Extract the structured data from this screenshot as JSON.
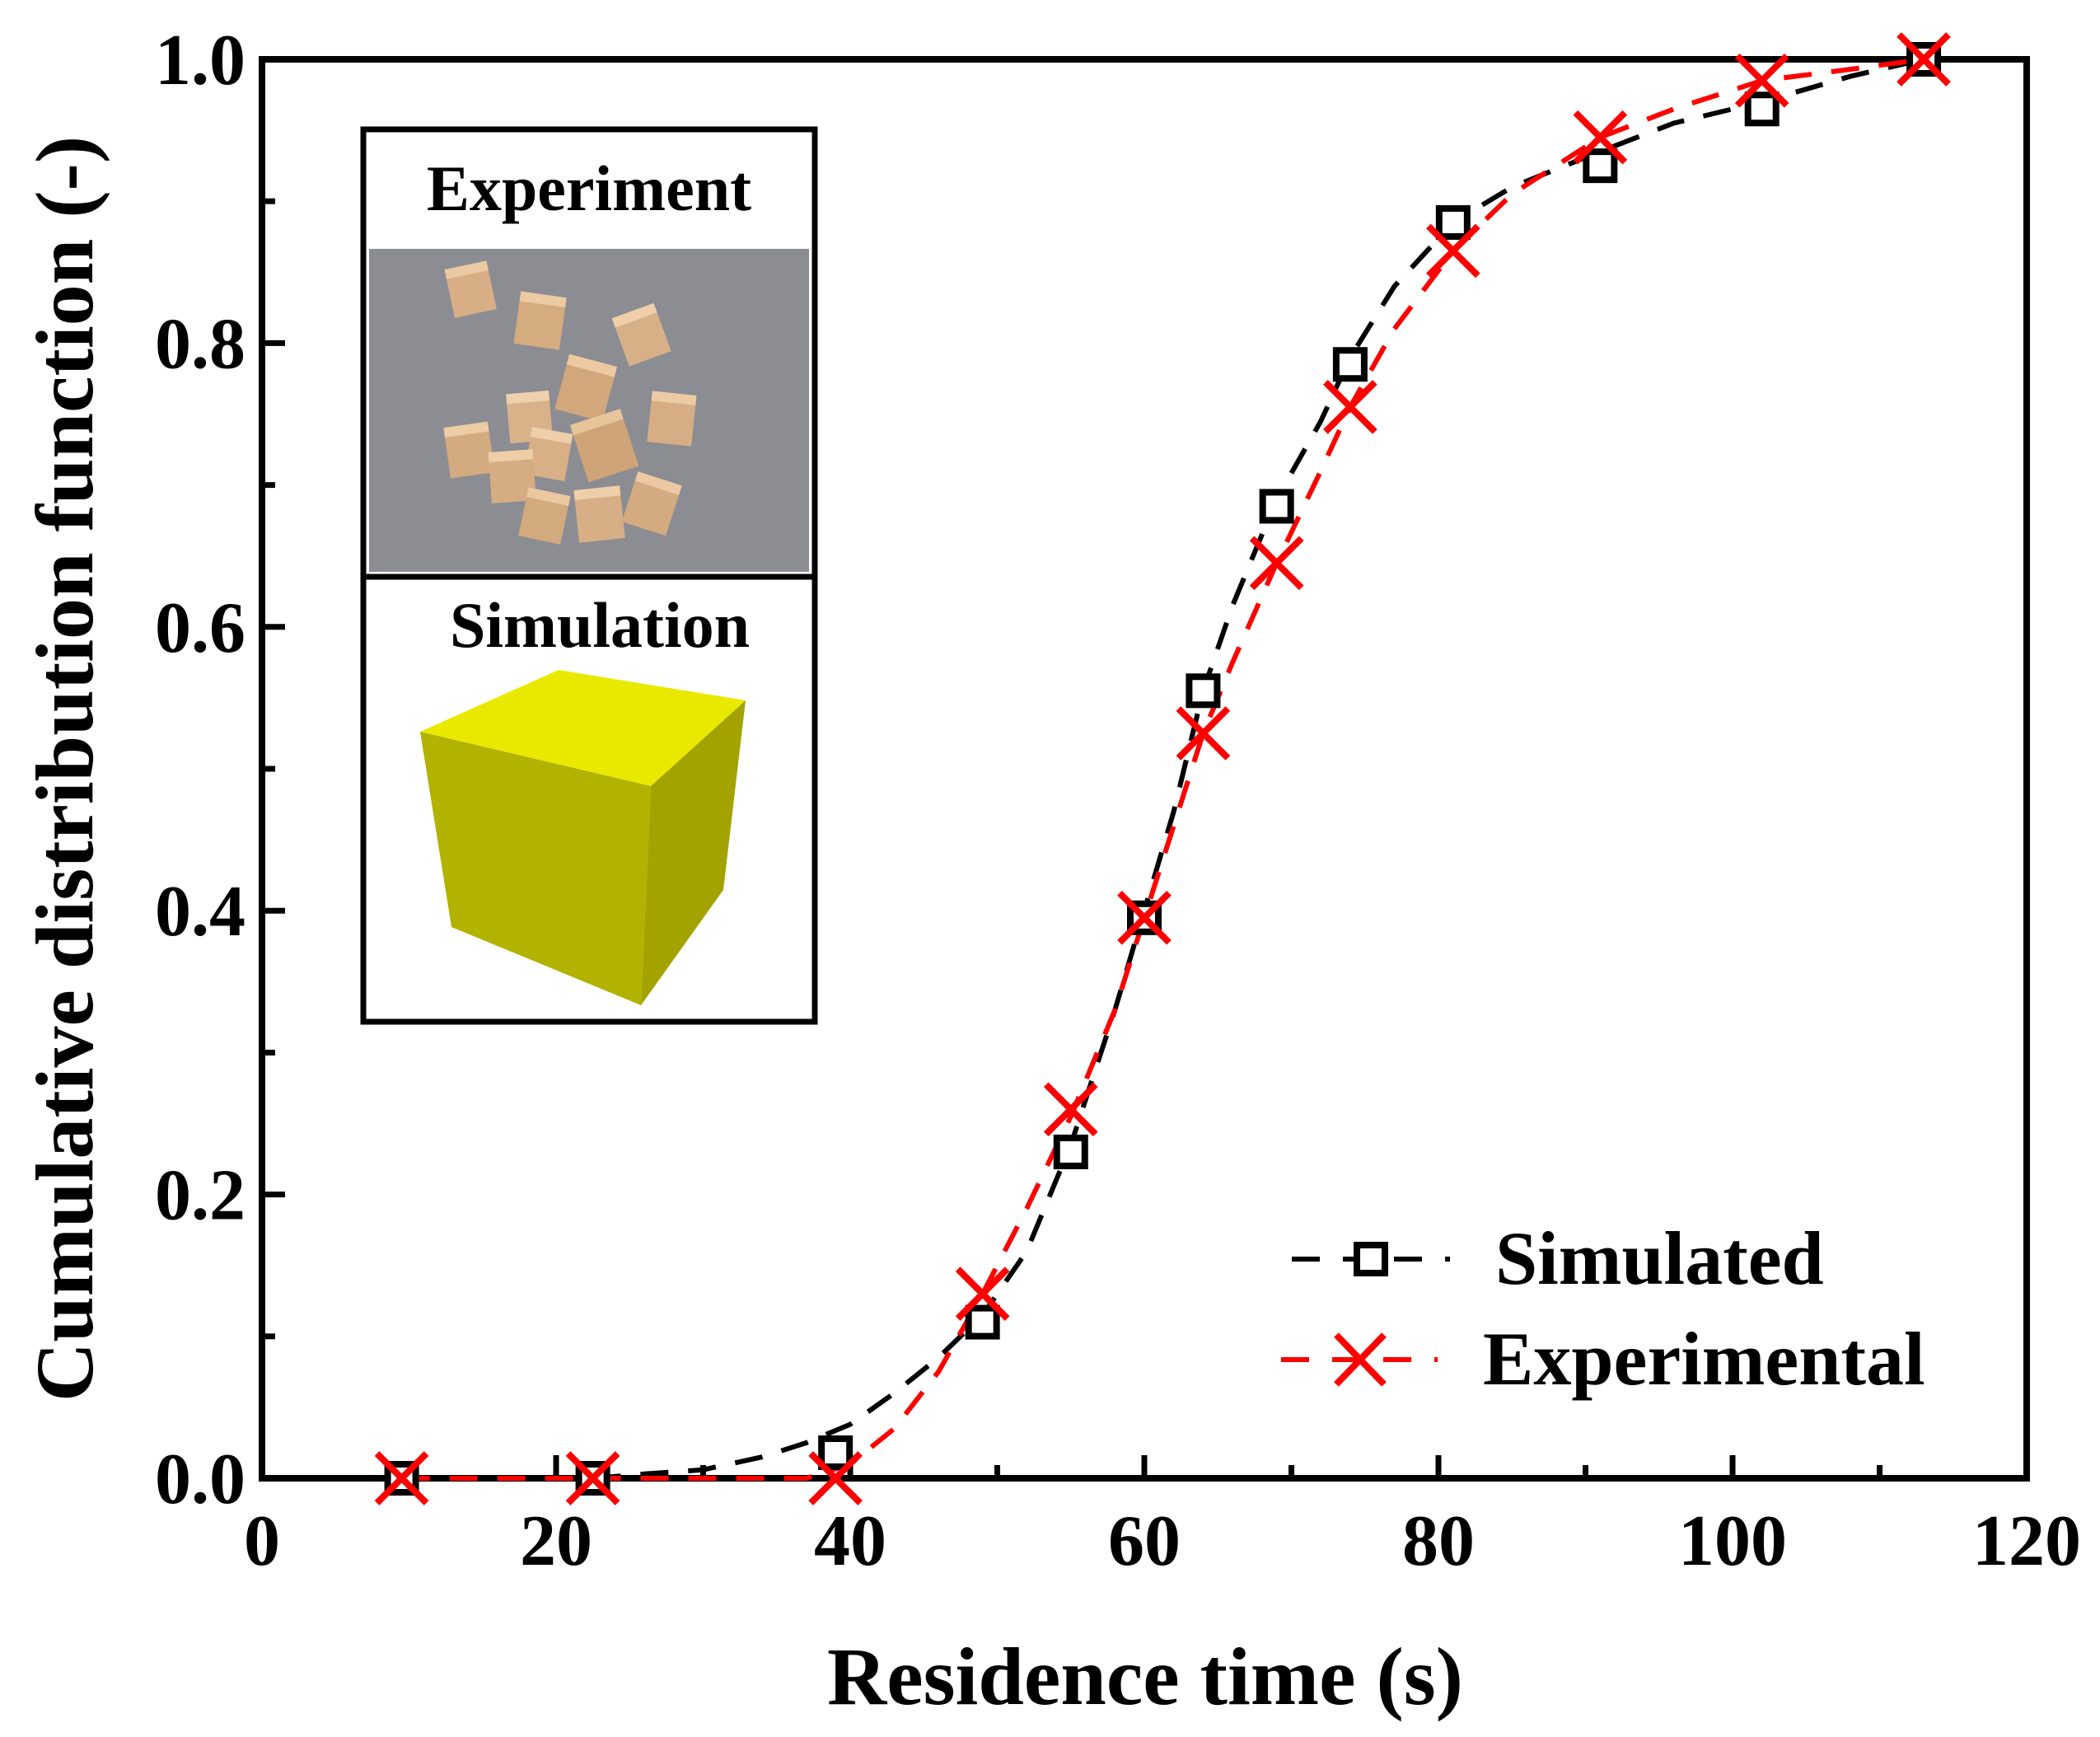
{
  "chart_data": {
    "type": "line",
    "xlabel": "Residence time (s)",
    "ylabel": "Cumulative distribution function (-)",
    "xlim": [
      0,
      120
    ],
    "ylim": [
      0,
      1.0
    ],
    "xticks": [
      0,
      20,
      40,
      60,
      80,
      100,
      120
    ],
    "yticks": [
      0.0,
      0.2,
      0.4,
      0.6,
      0.8,
      1.0
    ],
    "xtick_labels": [
      "0",
      "20",
      "40",
      "60",
      "80",
      "100",
      "120"
    ],
    "ytick_labels": [
      "0.0",
      "0.2",
      "0.4",
      "0.6",
      "0.8",
      "1.0"
    ],
    "legend_position": "bottom-right",
    "series": [
      {
        "name": "Simulated",
        "color": "#000000",
        "marker": "square",
        "line": "dashed",
        "x": [
          9.5,
          22.5,
          39,
          49,
          55,
          60,
          64,
          69,
          74,
          81,
          91,
          102,
          113
        ],
        "y": [
          0.0,
          0.0,
          0.018,
          0.11,
          0.23,
          0.395,
          0.555,
          0.685,
          0.785,
          0.885,
          0.925,
          0.965,
          1.0
        ],
        "fit_x": [
          9.5,
          14,
          18,
          22.5,
          26,
          30,
          34,
          37,
          40,
          43,
          46,
          49,
          52,
          55,
          58,
          60,
          62,
          64,
          66,
          69,
          72,
          74,
          77,
          81,
          85,
          91,
          96,
          102,
          108,
          113
        ],
        "fit_y": [
          0.0,
          0.0,
          0.0,
          0.0,
          0.003,
          0.006,
          0.015,
          0.025,
          0.038,
          0.06,
          0.085,
          0.115,
          0.16,
          0.235,
          0.33,
          0.4,
          0.47,
          0.555,
          0.615,
          0.69,
          0.745,
          0.79,
          0.84,
          0.885,
          0.91,
          0.935,
          0.955,
          0.97,
          0.988,
          1.0
        ]
      },
      {
        "name": "Experimental",
        "color": "#ff0000",
        "marker": "x",
        "line": "dashed",
        "x": [
          9.5,
          22.5,
          39,
          49,
          55,
          60,
          64,
          69,
          74,
          81,
          91,
          102,
          113
        ],
        "y": [
          0.0,
          0.0,
          0.0,
          0.13,
          0.26,
          0.395,
          0.525,
          0.645,
          0.755,
          0.865,
          0.945,
          0.985,
          1.0
        ],
        "fit_x": [
          9.5,
          14,
          18,
          22.5,
          26,
          30,
          34,
          37,
          40,
          43,
          46,
          49,
          52,
          55,
          58,
          60,
          62,
          64,
          66,
          69,
          72,
          74,
          77,
          81,
          85,
          91,
          96,
          102,
          108,
          113
        ],
        "fit_y": [
          0.0,
          0.0,
          0.0,
          0.0,
          0.0,
          0.0,
          0.0,
          0.0,
          0.01,
          0.035,
          0.075,
          0.13,
          0.19,
          0.255,
          0.33,
          0.395,
          0.46,
          0.525,
          0.575,
          0.645,
          0.71,
          0.755,
          0.81,
          0.865,
          0.905,
          0.945,
          0.965,
          0.985,
          0.993,
          1.0
        ]
      }
    ],
    "inset": {
      "experiment_label": "Experiment",
      "simulation_label": "Simulation"
    }
  },
  "colors": {
    "simulated": "#000000",
    "experimental": "#ff0000",
    "cube_top": "#e8e800",
    "cube_front": "#b0b000",
    "cube_right": "#a0a000",
    "photo_bg": "#8a8a90",
    "wood": "#d9b088"
  }
}
